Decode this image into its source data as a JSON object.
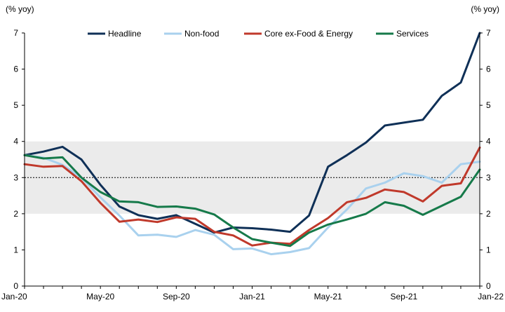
{
  "chart_data": {
    "type": "line",
    "title": "",
    "left_axis_label": "(% yoy)",
    "right_axis_label": "(% yoy)",
    "ylim": [
      0,
      7
    ],
    "y_ticks": [
      "0",
      "1",
      "2",
      "3",
      "4",
      "5",
      "6",
      "7"
    ],
    "x_tick_labels": [
      "Jan-20",
      "May-20",
      "Sep-20",
      "Jan-21",
      "May-21",
      "Sep-21",
      "Jan-22"
    ],
    "x_tick_indices": [
      0,
      4,
      8,
      12,
      16,
      20,
      24
    ],
    "x": [
      "Jan-20",
      "Feb-20",
      "Mar-20",
      "Apr-20",
      "May-20",
      "Jun-20",
      "Jul-20",
      "Aug-20",
      "Sep-20",
      "Oct-20",
      "Nov-20",
      "Dec-20",
      "Jan-21",
      "Feb-21",
      "Mar-21",
      "Apr-21",
      "May-21",
      "Jun-21",
      "Jul-21",
      "Aug-21",
      "Sep-21",
      "Oct-21",
      "Nov-21",
      "Dec-21",
      "Jan-22"
    ],
    "target_band": [
      2,
      4
    ],
    "reference_line": 3,
    "series": [
      {
        "name": "Headline",
        "color": "#0f3057",
        "values": [
          3.62,
          3.72,
          3.85,
          3.5,
          2.8,
          2.2,
          1.96,
          1.86,
          1.96,
          1.72,
          1.48,
          1.62,
          1.6,
          1.56,
          1.5,
          1.95,
          3.3,
          3.62,
          3.97,
          4.44,
          4.52,
          4.6,
          5.26,
          5.63,
          7.0
        ]
      },
      {
        "name": "Non-food",
        "color": "#a9d1ee",
        "values": [
          3.62,
          3.55,
          3.35,
          3.0,
          2.45,
          1.95,
          1.4,
          1.42,
          1.36,
          1.55,
          1.42,
          1.02,
          1.04,
          0.88,
          0.94,
          1.05,
          1.62,
          2.12,
          2.7,
          2.86,
          3.12,
          3.04,
          2.86,
          3.37,
          3.44
        ]
      },
      {
        "name": "Core ex-Food & Energy",
        "color": "#c0392b",
        "values": [
          3.37,
          3.3,
          3.32,
          2.9,
          2.3,
          1.78,
          1.84,
          1.77,
          1.9,
          1.86,
          1.5,
          1.4,
          1.12,
          1.2,
          1.17,
          1.55,
          1.88,
          2.32,
          2.44,
          2.67,
          2.6,
          2.34,
          2.77,
          2.84,
          3.83
        ]
      },
      {
        "name": "Services",
        "color": "#167a4a",
        "values": [
          3.62,
          3.53,
          3.56,
          3.0,
          2.6,
          2.34,
          2.32,
          2.19,
          2.2,
          2.14,
          1.98,
          1.62,
          1.3,
          1.2,
          1.11,
          1.48,
          1.7,
          1.84,
          2.0,
          2.32,
          2.22,
          1.97,
          2.22,
          2.47,
          3.22
        ]
      }
    ],
    "legend_position": "top"
  }
}
